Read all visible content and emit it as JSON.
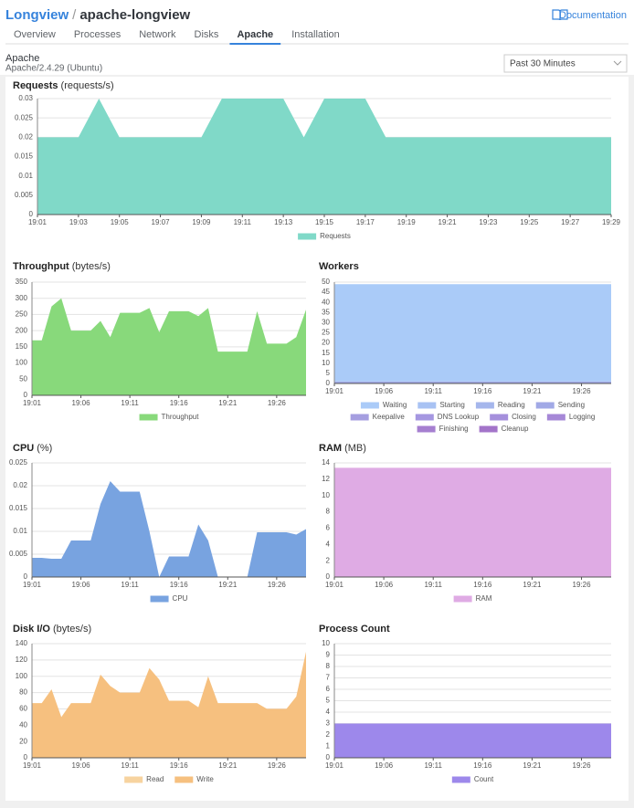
{
  "header": {
    "app": "Longview",
    "separator": "/",
    "name": "apache-longview",
    "docs": "Documentation"
  },
  "tabs": [
    "Overview",
    "Processes",
    "Network",
    "Disks",
    "Apache",
    "Installation"
  ],
  "active_tab": "Apache",
  "section": {
    "title": "Apache",
    "subtitle": "Apache/2.4.29 (Ubuntu)",
    "range": "Past 30 Minutes"
  },
  "chart_data": [
    {
      "type": "area",
      "title": "Requests",
      "unit": "(requests/s)",
      "x": [
        "19:01",
        "19:02",
        "19:03",
        "19:04",
        "19:05",
        "19:06",
        "19:07",
        "19:08",
        "19:09",
        "19:10",
        "19:11",
        "19:12",
        "19:13",
        "19:14",
        "19:15",
        "19:16",
        "19:17",
        "19:18",
        "19:19",
        "19:20",
        "19:21",
        "19:22",
        "19:23",
        "19:24",
        "19:25",
        "19:26",
        "19:27",
        "19:28",
        "19:29"
      ],
      "xlim": [
        "19:01",
        "19:29"
      ],
      "xticks": [
        "19:01",
        "19:03",
        "19:05",
        "19:07",
        "19:09",
        "19:11",
        "19:13",
        "19:15",
        "19:17",
        "19:19",
        "19:21",
        "19:23",
        "19:25",
        "19:27",
        "19:29"
      ],
      "ylim": [
        0,
        0.03
      ],
      "yticks": [
        0,
        0.005,
        0.01,
        0.015,
        0.02,
        0.025,
        0.03
      ],
      "grid": true,
      "series": [
        {
          "name": "Requests",
          "color": "#80d9c8",
          "values": [
            0.02,
            0.02,
            0.02,
            0.03,
            0.02,
            0.02,
            0.02,
            0.02,
            0.02,
            0.03,
            0.03,
            0.03,
            0.03,
            0.02,
            0.03,
            0.03,
            0.03,
            0.02,
            0.02,
            0.02,
            0.02,
            0.02,
            0.02,
            0.02,
            0.02,
            0.02,
            0.02,
            0.02,
            0.02
          ]
        }
      ]
    },
    {
      "type": "area",
      "title": "Throughput",
      "unit": "(bytes/s)",
      "x": [
        "19:01",
        "19:02",
        "19:03",
        "19:04",
        "19:05",
        "19:06",
        "19:07",
        "19:08",
        "19:09",
        "19:10",
        "19:11",
        "19:12",
        "19:13",
        "19:14",
        "19:15",
        "19:16",
        "19:17",
        "19:18",
        "19:19",
        "19:20",
        "19:21",
        "19:22",
        "19:23",
        "19:24",
        "19:25",
        "19:26",
        "19:27",
        "19:28",
        "19:29"
      ],
      "xlim": [
        "19:01",
        "19:29"
      ],
      "xticks": [
        "19:01",
        "19:06",
        "19:11",
        "19:16",
        "19:21",
        "19:26"
      ],
      "ylim": [
        0,
        350
      ],
      "yticks": [
        0,
        50,
        100,
        150,
        200,
        250,
        300,
        350
      ],
      "grid": true,
      "series": [
        {
          "name": "Throughput",
          "color": "#88d97b",
          "values": [
            170,
            170,
            275,
            300,
            200,
            200,
            200,
            230,
            180,
            255,
            255,
            255,
            270,
            195,
            260,
            260,
            260,
            245,
            270,
            135,
            135,
            135,
            135,
            260,
            160,
            160,
            160,
            180,
            265
          ]
        }
      ]
    },
    {
      "type": "area",
      "title": "Workers",
      "x": [
        "19:01",
        "19:02",
        "19:03",
        "19:04",
        "19:05",
        "19:06",
        "19:07",
        "19:08",
        "19:09",
        "19:10",
        "19:11",
        "19:12",
        "19:13",
        "19:14",
        "19:15",
        "19:16",
        "19:17",
        "19:18",
        "19:19",
        "19:20",
        "19:21",
        "19:22",
        "19:23",
        "19:24",
        "19:25",
        "19:26",
        "19:27",
        "19:28",
        "19:29"
      ],
      "xlim": [
        "19:01",
        "19:29"
      ],
      "xticks": [
        "19:01",
        "19:06",
        "19:11",
        "19:16",
        "19:21",
        "19:26"
      ],
      "ylim": [
        0,
        50
      ],
      "yticks": [
        0,
        5,
        10,
        15,
        20,
        25,
        30,
        35,
        40,
        45,
        50
      ],
      "grid": true,
      "series": [
        {
          "name": "Waiting",
          "color": "#aacbf8",
          "values": [
            48,
            48,
            48,
            48,
            48,
            48,
            48,
            48,
            48,
            48,
            48,
            48,
            48,
            48,
            48,
            48,
            48,
            48,
            48,
            48,
            48,
            48,
            48,
            48,
            48,
            48,
            48,
            48,
            48
          ]
        },
        {
          "name": "Starting",
          "color": "#a8c2f3",
          "values": [
            0,
            0,
            0,
            0,
            0,
            0,
            0,
            0,
            0,
            0,
            0,
            0,
            0,
            0,
            0,
            0,
            0,
            0,
            0,
            0,
            0,
            0,
            0,
            0,
            0,
            0,
            0,
            0,
            0
          ]
        },
        {
          "name": "Reading",
          "color": "#a5b6ec",
          "values": [
            0,
            0,
            0,
            0,
            0,
            0,
            0,
            0,
            0,
            0,
            0,
            0,
            0,
            0,
            0,
            0,
            0,
            0,
            0,
            0,
            0,
            0,
            0,
            0,
            0,
            0,
            0,
            0,
            0
          ]
        },
        {
          "name": "Sending",
          "color": "#a1a9e6",
          "values": [
            1,
            1,
            1,
            1,
            1,
            1,
            1,
            1,
            1,
            1,
            1,
            1,
            1,
            1,
            1,
            1,
            1,
            1,
            1,
            1,
            1,
            1,
            1,
            1,
            1,
            1,
            1,
            1,
            1
          ]
        },
        {
          "name": "Keepalive",
          "color": "#a59ee0",
          "values": [
            0,
            0,
            0,
            0,
            0,
            0,
            0,
            0,
            0,
            0,
            0,
            0,
            0,
            0,
            0,
            0,
            0,
            0,
            0,
            0,
            0,
            0,
            0,
            0,
            0,
            0,
            0,
            0,
            0
          ]
        },
        {
          "name": "DNS Lookup",
          "color": "#a597e1",
          "values": [
            0,
            0,
            0,
            0,
            0,
            0,
            0,
            0,
            0,
            0,
            0,
            0,
            0,
            0,
            0,
            0,
            0,
            0,
            0,
            0,
            0,
            0,
            0,
            0,
            0,
            0,
            0,
            0,
            0
          ]
        },
        {
          "name": "Closing",
          "color": "#a58fdc",
          "values": [
            0,
            0,
            0,
            0,
            0,
            0,
            0,
            0,
            0,
            0,
            0,
            0,
            0,
            0,
            0,
            0,
            0,
            0,
            0,
            0,
            0,
            0,
            0,
            0,
            0,
            0,
            0,
            0,
            0
          ]
        },
        {
          "name": "Logging",
          "color": "#a688d7",
          "values": [
            0,
            0,
            0,
            0,
            0,
            0,
            0,
            0,
            0,
            0,
            0,
            0,
            0,
            0,
            0,
            0,
            0,
            0,
            0,
            0,
            0,
            0,
            0,
            0,
            0,
            0,
            0,
            0,
            0
          ]
        },
        {
          "name": "Finishing",
          "color": "#a67fd0",
          "values": [
            0,
            0,
            0,
            0,
            0,
            0,
            0,
            0,
            0,
            0,
            0,
            0,
            0,
            0,
            0,
            0,
            0,
            0,
            0,
            0,
            0,
            0,
            0,
            0,
            0,
            0,
            0,
            0,
            0
          ]
        },
        {
          "name": "Cleanup",
          "color": "#a374c9",
          "values": [
            0,
            0,
            0,
            0,
            0,
            0,
            0,
            0,
            0,
            0,
            0,
            0,
            0,
            0,
            0,
            0,
            0,
            0,
            0,
            0,
            0,
            0,
            0,
            0,
            0,
            0,
            0,
            0,
            0
          ]
        }
      ]
    },
    {
      "type": "area",
      "title": "CPU",
      "unit": "(%)",
      "x": [
        "19:01",
        "19:02",
        "19:03",
        "19:04",
        "19:05",
        "19:06",
        "19:07",
        "19:08",
        "19:09",
        "19:10",
        "19:11",
        "19:12",
        "19:13",
        "19:14",
        "19:15",
        "19:16",
        "19:17",
        "19:18",
        "19:19",
        "19:20",
        "19:21",
        "19:22",
        "19:23",
        "19:24",
        "19:25",
        "19:26",
        "19:27",
        "19:28",
        "19:29"
      ],
      "xlim": [
        "19:01",
        "19:29"
      ],
      "xticks": [
        "19:01",
        "19:06",
        "19:11",
        "19:16",
        "19:21",
        "19:26"
      ],
      "ylim": [
        0,
        0.025
      ],
      "yticks": [
        0,
        0.005,
        0.01,
        0.015,
        0.02,
        0.025
      ],
      "grid": true,
      "series": [
        {
          "name": "CPU",
          "color": "#78a3e0",
          "values": [
            0.0042,
            0.0042,
            0.004,
            0.004,
            0.008,
            0.008,
            0.008,
            0.016,
            0.021,
            0.0187,
            0.0187,
            0.0187,
            0.01,
            0,
            0.0045,
            0.0045,
            0.0045,
            0.0115,
            0.008,
            0,
            0,
            0,
            0,
            0.0098,
            0.0098,
            0.0098,
            0.0098,
            0.0093,
            0.0105
          ]
        }
      ]
    },
    {
      "type": "area",
      "title": "RAM",
      "unit": "(MB)",
      "x": [
        "19:01",
        "19:02",
        "19:03",
        "19:04",
        "19:05",
        "19:06",
        "19:07",
        "19:08",
        "19:09",
        "19:10",
        "19:11",
        "19:12",
        "19:13",
        "19:14",
        "19:15",
        "19:16",
        "19:17",
        "19:18",
        "19:19",
        "19:20",
        "19:21",
        "19:22",
        "19:23",
        "19:24",
        "19:25",
        "19:26",
        "19:27",
        "19:28",
        "19:29"
      ],
      "xlim": [
        "19:01",
        "19:29"
      ],
      "xticks": [
        "19:01",
        "19:06",
        "19:11",
        "19:16",
        "19:21",
        "19:26"
      ],
      "ylim": [
        0,
        14
      ],
      "yticks": [
        0,
        2,
        4,
        6,
        8,
        10,
        12,
        14
      ],
      "grid": true,
      "series": [
        {
          "name": "RAM",
          "color": "#dfabe4",
          "values": [
            13.4,
            13.4,
            13.4,
            13.4,
            13.4,
            13.4,
            13.4,
            13.4,
            13.4,
            13.4,
            13.4,
            13.4,
            13.4,
            13.4,
            13.4,
            13.4,
            13.4,
            13.4,
            13.4,
            13.4,
            13.4,
            13.4,
            13.4,
            13.4,
            13.4,
            13.4,
            13.4,
            13.4,
            13.4
          ]
        }
      ]
    },
    {
      "type": "area",
      "title": "Disk I/O",
      "unit": "(bytes/s)",
      "x": [
        "19:01",
        "19:02",
        "19:03",
        "19:04",
        "19:05",
        "19:06",
        "19:07",
        "19:08",
        "19:09",
        "19:10",
        "19:11",
        "19:12",
        "19:13",
        "19:14",
        "19:15",
        "19:16",
        "19:17",
        "19:18",
        "19:19",
        "19:20",
        "19:21",
        "19:22",
        "19:23",
        "19:24",
        "19:25",
        "19:26",
        "19:27",
        "19:28",
        "19:29"
      ],
      "xlim": [
        "19:01",
        "19:29"
      ],
      "xticks": [
        "19:01",
        "19:06",
        "19:11",
        "19:16",
        "19:21",
        "19:26"
      ],
      "ylim": [
        0,
        140
      ],
      "yticks": [
        0,
        20,
        40,
        60,
        80,
        100,
        120,
        140
      ],
      "grid": true,
      "series": [
        {
          "name": "Read",
          "color": "#f7d39f",
          "values": [
            0,
            0,
            0,
            0,
            0,
            0,
            0,
            0,
            0,
            0,
            0,
            0,
            0,
            0,
            0,
            0,
            0,
            0,
            0,
            0,
            0,
            0,
            0,
            0,
            0,
            0,
            0,
            0,
            0
          ]
        },
        {
          "name": "Write",
          "color": "#f6c07f",
          "values": [
            67,
            67,
            84,
            50,
            67,
            67,
            67,
            102,
            88,
            80,
            80,
            80,
            110,
            96,
            70,
            70,
            70,
            62,
            100,
            67,
            67,
            67,
            67,
            67,
            60,
            60,
            60,
            75,
            130
          ]
        }
      ]
    },
    {
      "type": "area",
      "title": "Process Count",
      "x": [
        "19:01",
        "19:02",
        "19:03",
        "19:04",
        "19:05",
        "19:06",
        "19:07",
        "19:08",
        "19:09",
        "19:10",
        "19:11",
        "19:12",
        "19:13",
        "19:14",
        "19:15",
        "19:16",
        "19:17",
        "19:18",
        "19:19",
        "19:20",
        "19:21",
        "19:22",
        "19:23",
        "19:24",
        "19:25",
        "19:26",
        "19:27",
        "19:28",
        "19:29"
      ],
      "xlim": [
        "19:01",
        "19:29"
      ],
      "xticks": [
        "19:01",
        "19:06",
        "19:11",
        "19:16",
        "19:21",
        "19:26"
      ],
      "ylim": [
        0,
        10
      ],
      "yticks": [
        0,
        1,
        2,
        3,
        4,
        5,
        6,
        7,
        8,
        9,
        10
      ],
      "grid": true,
      "series": [
        {
          "name": "Count",
          "color": "#9d88eb",
          "values": [
            3,
            3,
            3,
            3,
            3,
            3,
            3,
            3,
            3,
            3,
            3,
            3,
            3,
            3,
            3,
            3,
            3,
            3,
            3,
            3,
            3,
            3,
            3,
            3,
            3,
            3,
            3,
            3,
            3
          ]
        }
      ]
    }
  ]
}
